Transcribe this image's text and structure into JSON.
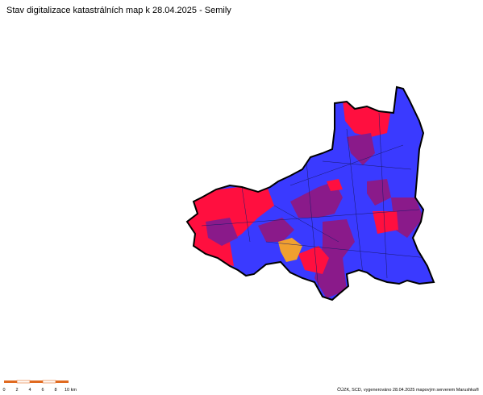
{
  "title": "Stav digitalizace katastrálních map k 28.04.2025 - Semily",
  "scale_bar": {
    "labels": [
      "0",
      "2",
      "4",
      "6",
      "8",
      "10 km"
    ]
  },
  "credit": "ČÚZK, SCD, vygenerováno 28.04.2025 mapovým serverem Marushka®"
}
